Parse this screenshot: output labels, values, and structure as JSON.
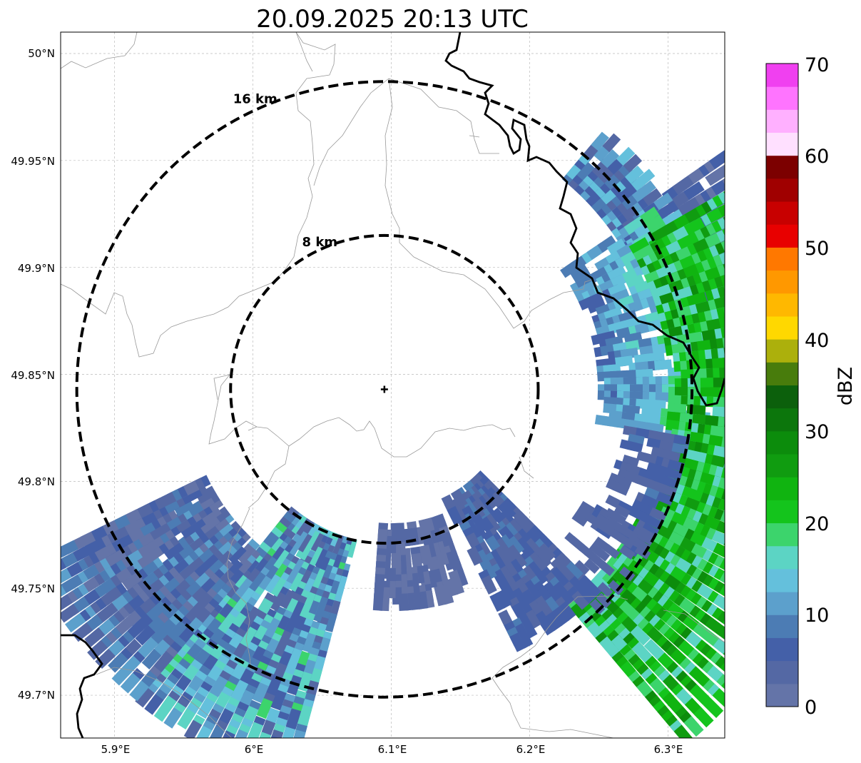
{
  "title": "20.09.2025 20:13 UTC",
  "map": {
    "x_ticks": [
      "5.9°E",
      "6°E",
      "6.1°E",
      "6.2°E",
      "6.3°E"
    ],
    "y_ticks": [
      "50°N",
      "49.95°N",
      "49.9°N",
      "49.85°N",
      "49.8°N",
      "49.75°N",
      "49.7°N"
    ],
    "lon_range": [
      5.861,
      6.341
    ],
    "lat_range": [
      49.68,
      50.01
    ],
    "grid": true,
    "radar_site": {
      "lon": 6.095,
      "lat": 49.843,
      "symbol": "+"
    },
    "range_rings": [
      {
        "label": "8 km",
        "radius_km": 8
      },
      {
        "label": "16 km",
        "radius_km": 16
      }
    ],
    "border_color": "#000000",
    "boundary_color": "#999999"
  },
  "colorbar": {
    "label": "dBZ",
    "tick_labels": [
      "0",
      "10",
      "20",
      "30",
      "40",
      "50",
      "60",
      "70"
    ],
    "range": [
      0,
      70
    ],
    "step": 5,
    "colors": [
      "#6474a8",
      "#5468a4",
      "#4460a8",
      "#4c7cb4",
      "#5ca0cc",
      "#64c0dc",
      "#5cd4c4",
      "#3cd46c",
      "#14c41c",
      "#10b410",
      "#109c10",
      "#0c8c0c",
      "#0c760c",
      "#0c600c",
      "#487c0c",
      "#acb00c",
      "#ffd800",
      "#ffb800",
      "#ff9800",
      "#ff7800",
      "#e80000",
      "#c80000",
      "#a00000",
      "#7c0000",
      "#ffe0ff",
      "#ffb0ff",
      "#ff74ff",
      "#f040f0"
    ]
  }
}
